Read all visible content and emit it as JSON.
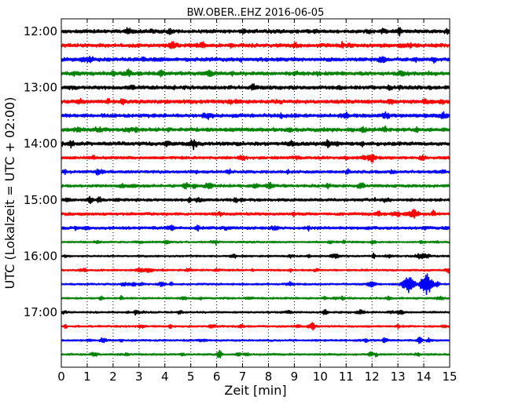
{
  "chart_data": {
    "type": "line",
    "title": "BW.OBER..EHZ 2016-06-05",
    "xlabel": "Zeit  [min]",
    "ylabel": "UTC (Lokalzeit = UTC + 02:00)",
    "xlim": [
      0,
      15
    ],
    "x_ticks": [
      "0",
      "1",
      "2",
      "3",
      "4",
      "5",
      "6",
      "7",
      "8",
      "9",
      "10",
      "11",
      "12",
      "13",
      "14",
      "15"
    ],
    "y_ticks": [
      "12:00",
      "13:00",
      "14:00",
      "15:00",
      "16:00",
      "17:00"
    ],
    "grid": "vertical dotted",
    "colors": [
      "#000000",
      "#ff0000",
      "#0000ff",
      "#008000"
    ],
    "series": [
      {
        "start": "12:00",
        "color": "#000000",
        "level": "high"
      },
      {
        "start": "12:15",
        "color": "#ff0000",
        "level": "high"
      },
      {
        "start": "12:30",
        "color": "#0000ff",
        "level": "high"
      },
      {
        "start": "12:45",
        "color": "#008000",
        "level": "high"
      },
      {
        "start": "13:00",
        "color": "#000000",
        "level": "high"
      },
      {
        "start": "13:15",
        "color": "#ff0000",
        "level": "high"
      },
      {
        "start": "13:30",
        "color": "#0000ff",
        "level": "high"
      },
      {
        "start": "13:45",
        "color": "#008000",
        "level": "high"
      },
      {
        "start": "14:00",
        "color": "#000000",
        "level": "high"
      },
      {
        "start": "14:15",
        "color": "#ff0000",
        "level": "medium"
      },
      {
        "start": "14:30",
        "color": "#0000ff",
        "level": "medium"
      },
      {
        "start": "14:45",
        "color": "#008000",
        "level": "medium"
      },
      {
        "start": "15:00",
        "color": "#000000",
        "level": "medium"
      },
      {
        "start": "15:15",
        "color": "#ff0000",
        "level": "medium"
      },
      {
        "start": "15:30",
        "color": "#0000ff",
        "level": "medium"
      },
      {
        "start": "15:45",
        "color": "#008000",
        "level": "low"
      },
      {
        "start": "16:00",
        "color": "#000000",
        "level": "low"
      },
      {
        "start": "16:15",
        "color": "#ff0000",
        "level": "low"
      },
      {
        "start": "16:30",
        "color": "#0000ff",
        "level": "low",
        "events": [
          {
            "t": 13.4,
            "amp": 3
          },
          {
            "t": 14.1,
            "amp": 4
          }
        ]
      },
      {
        "start": "16:45",
        "color": "#008000",
        "level": "low"
      },
      {
        "start": "17:00",
        "color": "#000000",
        "level": "low"
      },
      {
        "start": "17:15",
        "color": "#ff0000",
        "level": "low"
      },
      {
        "start": "17:30",
        "color": "#0000ff",
        "level": "low"
      },
      {
        "start": "17:45",
        "color": "#008000",
        "level": "low"
      }
    ]
  }
}
